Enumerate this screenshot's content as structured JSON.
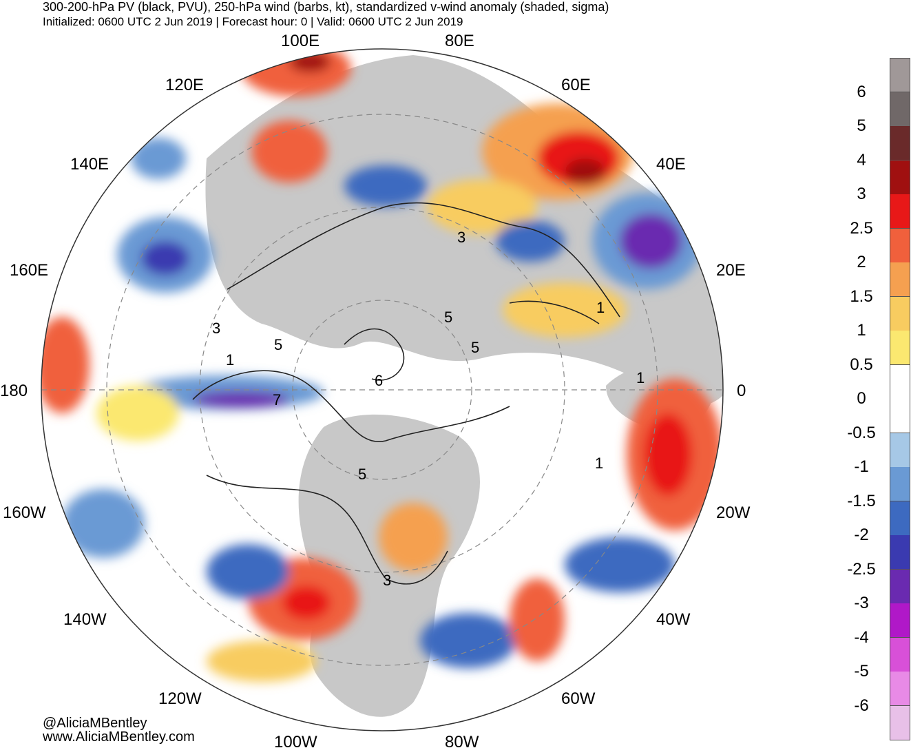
{
  "header": {
    "title": "300-200-hPa PV (black, PVU), 250-hPa wind (barbs, kt), standardized v-wind anomaly (shaded, sigma)",
    "subtitle": "Initialized: 0600 UTC 2 Jun 2019 | Forecast hour: 0 | Valid: 0600 UTC 2 Jun 2019"
  },
  "map": {
    "projection": "north-polar-stereographic",
    "longitude_labels": [
      "100E",
      "80E",
      "120E",
      "60E",
      "140E",
      "40E",
      "160E",
      "20E",
      "180",
      "0",
      "160W",
      "20W",
      "140W",
      "40W",
      "120W",
      "60W",
      "100W",
      "80W"
    ],
    "contour_labels": [
      "3",
      "5",
      "1",
      "3",
      "5",
      "1",
      "5",
      "6",
      "7",
      "5",
      "3",
      "1",
      "1"
    ],
    "colors": {
      "land": "#c8c8c8",
      "ocean": "#ffffff",
      "contour": "#222222",
      "graticule": "#888888"
    }
  },
  "colorbar": {
    "labels": [
      "6",
      "5",
      "4",
      "3",
      "2.5",
      "2",
      "1.5",
      "1",
      "0.5",
      "0",
      "-0.5",
      "-1",
      "-1.5",
      "-2",
      "-2.5",
      "-3",
      "-4",
      "-5",
      "-6"
    ],
    "colors": [
      "#a09898",
      "#706868",
      "#6a2a2a",
      "#a01010",
      "#e81818",
      "#f0603c",
      "#f5a050",
      "#f8cc60",
      "#fbe870",
      "#ffffff",
      "#ffffff",
      "#a6c8e6",
      "#6a9ad4",
      "#3d6ac0",
      "#3a3ab0",
      "#6a2ab0",
      "#b018c8",
      "#d850d8",
      "#e88ae6",
      "#e8c0e8"
    ]
  },
  "credits": {
    "handle": "@AliciaMBentley",
    "website": "www.AliciaMBentley.com"
  }
}
